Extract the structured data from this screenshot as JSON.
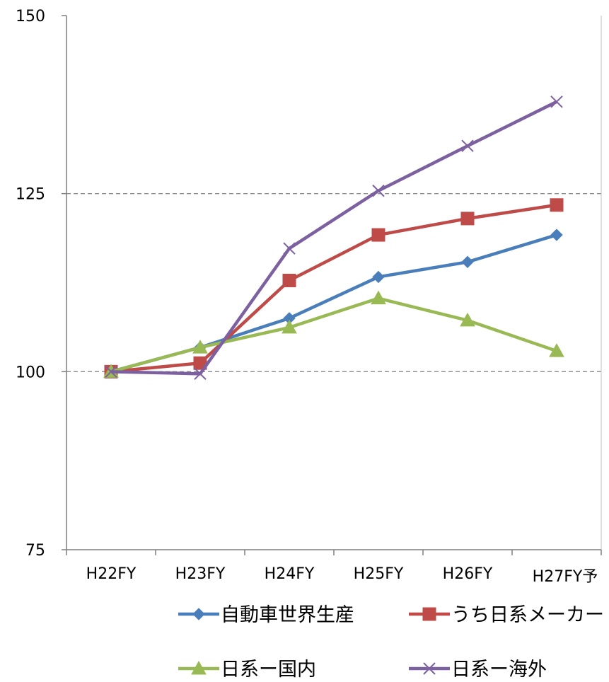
{
  "chart_data": {
    "type": "line",
    "title": "",
    "xlabel": "",
    "ylabel": "",
    "categories": [
      "H22FY",
      "H23FY",
      "H24FY",
      "H25FY",
      "H26FY",
      "H27FY予"
    ],
    "ylim": [
      75,
      150
    ],
    "yticks": [
      75,
      100,
      125,
      150
    ],
    "grid": {
      "dashed_y_at": [
        100,
        125
      ]
    },
    "legend_position": "bottom",
    "series": [
      {
        "name": "自動車世界生産",
        "color": "#4a7ebb",
        "marker": "diamond",
        "values": [
          100,
          103.4,
          107.5,
          113.3,
          115.4,
          119.2
        ]
      },
      {
        "name": "うち日系メーカー",
        "color": "#be4b48",
        "marker": "square",
        "values": [
          100,
          101.2,
          112.8,
          119.2,
          121.5,
          123.4
        ]
      },
      {
        "name": "日系ー国内",
        "color": "#98b954",
        "marker": "triangle",
        "values": [
          100,
          103.4,
          106.2,
          110.3,
          107.2,
          102.9
        ]
      },
      {
        "name": "日系ー海外",
        "color": "#7d60a0",
        "marker": "x",
        "values": [
          100,
          99.7,
          117.3,
          125.4,
          131.7,
          137.9
        ]
      }
    ]
  }
}
